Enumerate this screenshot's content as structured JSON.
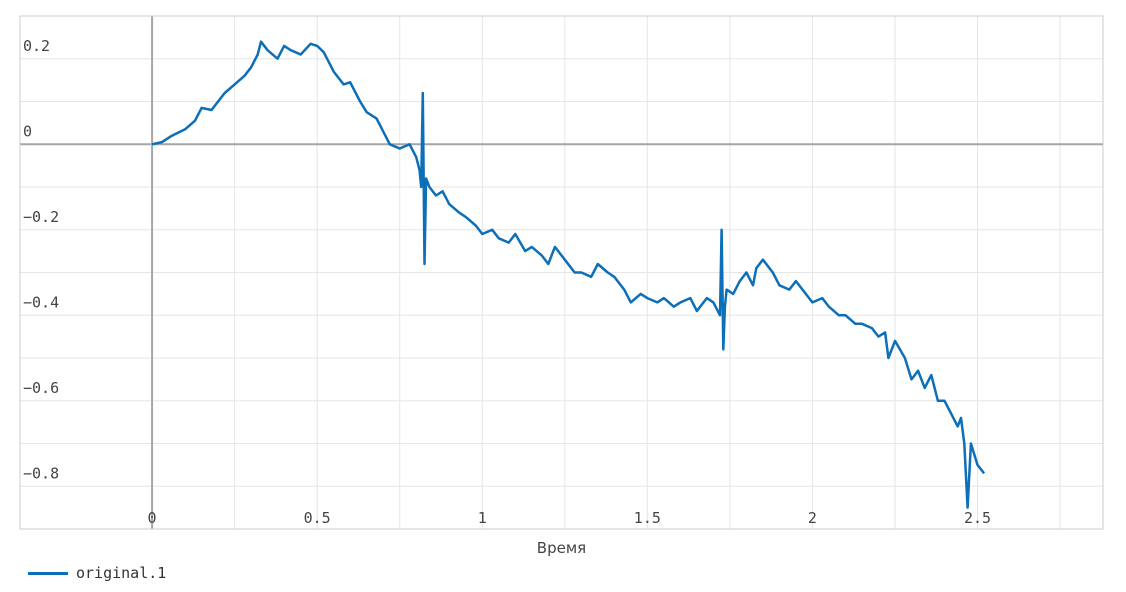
{
  "chart_data": {
    "type": "line",
    "xlabel": "Время",
    "ylabel": "",
    "xlim": [
      -0.4,
      2.88
    ],
    "ylim": [
      -0.9,
      0.3
    ],
    "x_ticks": [
      0,
      0.5,
      1,
      1.5,
      2,
      2.5
    ],
    "x_tick_labels": [
      "0",
      "0.5",
      "1",
      "1.5",
      "2",
      "2.5"
    ],
    "y_ticks": [
      0.2,
      0,
      -0.2,
      -0.4,
      -0.6,
      -0.8
    ],
    "y_tick_labels": [
      "0.2",
      "0",
      "−0.2",
      "−0.4",
      "−0.6",
      "−0.8"
    ],
    "grid": true,
    "legend_position": "bottom-left",
    "colors": {
      "series": "#0c6fb7",
      "grid": "#e6e6e6",
      "zero_line": "#a6a6a6",
      "frame": "#cccccc"
    },
    "series": [
      {
        "name": "original.1",
        "x": [
          0,
          0.03,
          0.06,
          0.1,
          0.13,
          0.15,
          0.18,
          0.2,
          0.22,
          0.25,
          0.28,
          0.3,
          0.32,
          0.33,
          0.35,
          0.38,
          0.4,
          0.42,
          0.45,
          0.48,
          0.5,
          0.52,
          0.55,
          0.58,
          0.6,
          0.63,
          0.65,
          0.68,
          0.7,
          0.72,
          0.75,
          0.78,
          0.8,
          0.81,
          0.815,
          0.82,
          0.825,
          0.83,
          0.84,
          0.86,
          0.88,
          0.9,
          0.93,
          0.95,
          0.98,
          1.0,
          1.03,
          1.05,
          1.08,
          1.1,
          1.13,
          1.15,
          1.18,
          1.2,
          1.22,
          1.25,
          1.28,
          1.3,
          1.33,
          1.35,
          1.38,
          1.4,
          1.43,
          1.45,
          1.48,
          1.5,
          1.53,
          1.55,
          1.58,
          1.6,
          1.63,
          1.65,
          1.68,
          1.7,
          1.72,
          1.725,
          1.73,
          1.735,
          1.74,
          1.76,
          1.78,
          1.8,
          1.82,
          1.83,
          1.85,
          1.88,
          1.9,
          1.93,
          1.95,
          1.98,
          2.0,
          2.03,
          2.05,
          2.08,
          2.1,
          2.13,
          2.15,
          2.18,
          2.2,
          2.22,
          2.23,
          2.25,
          2.28,
          2.3,
          2.32,
          2.34,
          2.36,
          2.38,
          2.4,
          2.42,
          2.44,
          2.45,
          2.46,
          2.47,
          2.48,
          2.5,
          2.52
        ],
        "values": [
          0.0,
          0.005,
          0.02,
          0.035,
          0.055,
          0.085,
          0.08,
          0.1,
          0.12,
          0.14,
          0.16,
          0.18,
          0.21,
          0.24,
          0.22,
          0.2,
          0.23,
          0.22,
          0.21,
          0.235,
          0.23,
          0.215,
          0.17,
          0.14,
          0.145,
          0.1,
          0.075,
          0.06,
          0.03,
          0.0,
          -0.01,
          0.0,
          -0.03,
          -0.06,
          -0.1,
          0.12,
          -0.28,
          -0.08,
          -0.1,
          -0.12,
          -0.11,
          -0.14,
          -0.16,
          -0.17,
          -0.19,
          -0.21,
          -0.2,
          -0.22,
          -0.23,
          -0.21,
          -0.25,
          -0.24,
          -0.26,
          -0.28,
          -0.24,
          -0.27,
          -0.3,
          -0.3,
          -0.31,
          -0.28,
          -0.3,
          -0.31,
          -0.34,
          -0.37,
          -0.35,
          -0.36,
          -0.37,
          -0.36,
          -0.38,
          -0.37,
          -0.36,
          -0.39,
          -0.36,
          -0.37,
          -0.4,
          -0.2,
          -0.48,
          -0.38,
          -0.34,
          -0.35,
          -0.32,
          -0.3,
          -0.33,
          -0.29,
          -0.27,
          -0.3,
          -0.33,
          -0.34,
          -0.32,
          -0.35,
          -0.37,
          -0.36,
          -0.38,
          -0.4,
          -0.4,
          -0.42,
          -0.42,
          -0.43,
          -0.45,
          -0.44,
          -0.5,
          -0.46,
          -0.5,
          -0.55,
          -0.53,
          -0.57,
          -0.54,
          -0.6,
          -0.6,
          -0.63,
          -0.66,
          -0.64,
          -0.7,
          -0.85,
          -0.7,
          -0.75,
          -0.77
        ]
      }
    ]
  }
}
